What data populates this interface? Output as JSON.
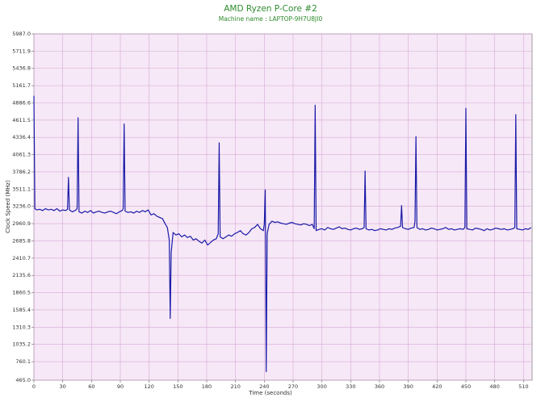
{
  "chart_data": {
    "type": "line",
    "title": "AMD Ryzen P-Core #2",
    "subtitle": "Machine name : LAPTOP-9H7U8JI0",
    "x_label": "Time (seconds)",
    "y_label": "Clock Speed (MHz)",
    "xlim": [
      0,
      519
    ],
    "xticks": [
      0,
      30,
      60,
      90,
      120,
      150,
      180,
      210,
      240,
      270,
      300,
      330,
      360,
      390,
      420,
      450,
      480,
      510
    ],
    "ylim": [
      465,
      5987
    ],
    "yticks": [
      {
        "value": 465,
        "label": "465.0"
      },
      760.1,
      1035.2,
      1310.3,
      1585.4,
      1860.5,
      2135.6,
      2410.7,
      2685.8,
      2960.9,
      {
        "value": 3236,
        "label": "3236.0"
      },
      3511.1,
      3786.2,
      4061.3,
      4336.4,
      4611.5,
      4886.6,
      5161.7,
      5436.8,
      5711.9,
      {
        "value": 5987,
        "label": "5987.0"
      }
    ],
    "grid": true,
    "x": [
      0,
      1,
      3,
      6,
      9,
      12,
      15,
      18,
      21,
      24,
      27,
      30,
      33,
      35,
      36,
      37,
      40,
      43,
      45,
      46,
      47,
      50,
      53,
      56,
      59,
      62,
      65,
      68,
      71,
      74,
      77,
      80,
      83,
      86,
      89,
      92,
      93,
      94,
      95,
      98,
      101,
      104,
      107,
      110,
      113,
      116,
      119,
      122,
      125,
      128,
      131,
      134,
      137,
      139,
      141,
      142,
      143,
      145,
      148,
      151,
      154,
      157,
      160,
      163,
      166,
      169,
      172,
      175,
      178,
      181,
      184,
      187,
      190,
      192,
      193,
      194,
      197,
      200,
      203,
      206,
      209,
      212,
      215,
      218,
      221,
      224,
      227,
      230,
      233,
      236,
      239,
      240,
      241,
      242,
      243,
      245,
      248,
      251,
      254,
      257,
      260,
      263,
      266,
      269,
      272,
      275,
      278,
      281,
      284,
      287,
      290,
      292,
      293,
      294,
      297,
      300,
      303,
      306,
      309,
      312,
      315,
      318,
      321,
      324,
      327,
      330,
      333,
      336,
      339,
      342,
      344,
      345,
      346,
      349,
      352,
      355,
      358,
      361,
      364,
      367,
      370,
      373,
      376,
      379,
      382,
      383,
      384,
      387,
      390,
      393,
      396,
      397,
      398,
      399,
      402,
      405,
      408,
      411,
      414,
      417,
      420,
      423,
      426,
      429,
      432,
      435,
      438,
      441,
      444,
      447,
      449,
      450,
      451,
      454,
      457,
      460,
      463,
      466,
      469,
      472,
      475,
      478,
      481,
      484,
      487,
      490,
      493,
      496,
      499,
      501,
      502,
      503,
      506,
      509,
      512,
      515,
      518
    ],
    "series": [
      {
        "name": "Clock Speed",
        "color": "#1a1aa8",
        "values": [
          5000,
          3200,
          3180,
          3190,
          3170,
          3200,
          3180,
          3190,
          3170,
          3200,
          3160,
          3180,
          3170,
          3190,
          3700,
          3180,
          3150,
          3170,
          3200,
          4650,
          3150,
          3130,
          3160,
          3140,
          3170,
          3130,
          3150,
          3160,
          3140,
          3130,
          3150,
          3160,
          3140,
          3120,
          3150,
          3170,
          3200,
          4550,
          3160,
          3140,
          3150,
          3130,
          3160,
          3140,
          3170,
          3150,
          3180,
          3100,
          3120,
          3080,
          3060,
          3040,
          2950,
          2900,
          2700,
          1450,
          2500,
          2820,
          2780,
          2800,
          2750,
          2780,
          2740,
          2760,
          2700,
          2720,
          2680,
          2650,
          2700,
          2620,
          2660,
          2700,
          2720,
          2800,
          4250,
          2750,
          2720,
          2750,
          2780,
          2760,
          2800,
          2820,
          2850,
          2800,
          2780,
          2820,
          2880,
          2900,
          2950,
          2880,
          2850,
          2950,
          3500,
          600,
          2800,
          2950,
          3000,
          2980,
          2990,
          2970,
          2960,
          2950,
          2970,
          2980,
          2960,
          2950,
          2940,
          2960,
          2950,
          2930,
          2950,
          2880,
          4850,
          2850,
          2870,
          2880,
          2860,
          2900,
          2880,
          2870,
          2890,
          2910,
          2880,
          2890,
          2870,
          2860,
          2880,
          2890,
          2870,
          2880,
          2900,
          3800,
          2880,
          2860,
          2870,
          2850,
          2860,
          2880,
          2870,
          2860,
          2880,
          2870,
          2890,
          2900,
          2920,
          3250,
          2900,
          2880,
          2870,
          2890,
          2900,
          3000,
          4350,
          2900,
          2870,
          2880,
          2860,
          2870,
          2890,
          2880,
          2860,
          2870,
          2880,
          2900,
          2870,
          2880,
          2860,
          2870,
          2880,
          2870,
          2900,
          4800,
          2880,
          2870,
          2860,
          2890,
          2880,
          2870,
          2850,
          2880,
          2860,
          2870,
          2890,
          2880,
          2870,
          2880,
          2860,
          2870,
          2880,
          2900,
          4700,
          2880,
          2870,
          2860,
          2880,
          2870,
          2900
        ]
      }
    ]
  }
}
